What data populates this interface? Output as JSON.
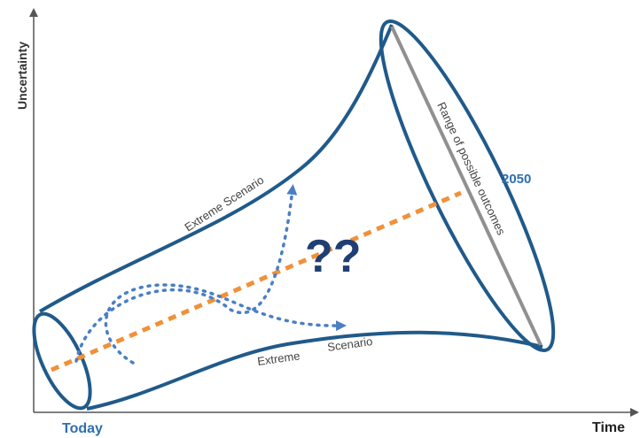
{
  "axes": {
    "y_label": "Uncertainty",
    "x_label": "Time",
    "start_label": "Today",
    "end_label": "2050"
  },
  "cone": {
    "upper_label": "Extreme Scenario",
    "lower_label_1": "Extreme",
    "lower_label_2": "Scenario",
    "range_label": "Range of possible outcomes"
  },
  "center_glyphs": "??",
  "colors": {
    "outline": "#1f5a8a",
    "trend": "#f0913a",
    "dotted": "#4a7fc4",
    "range_line": "#909090",
    "axis": "#555555",
    "label_blue": "#2e6fb0",
    "glyph": "#1f3f73"
  }
}
